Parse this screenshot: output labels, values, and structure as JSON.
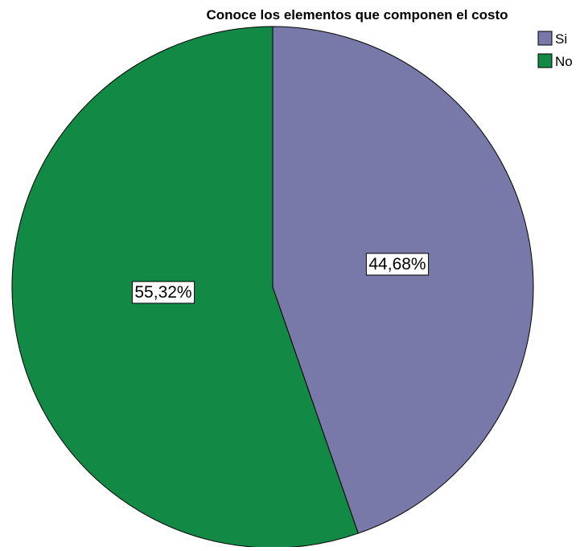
{
  "chart_data": {
    "type": "pie",
    "title": "Conoce los elementos que componen el costo",
    "categories": [
      "Si",
      "No"
    ],
    "values": [
      44.68,
      55.32
    ],
    "data_labels": [
      "44,68%",
      "55,32%"
    ],
    "colors": [
      "#7979a9",
      "#128a46"
    ],
    "start_angle_deg": 0,
    "direction": "clockwise",
    "legend": {
      "position": "top-right",
      "entries": [
        {
          "label": "Si",
          "color": "#7979a9"
        },
        {
          "label": "No",
          "color": "#128a46"
        }
      ]
    }
  }
}
